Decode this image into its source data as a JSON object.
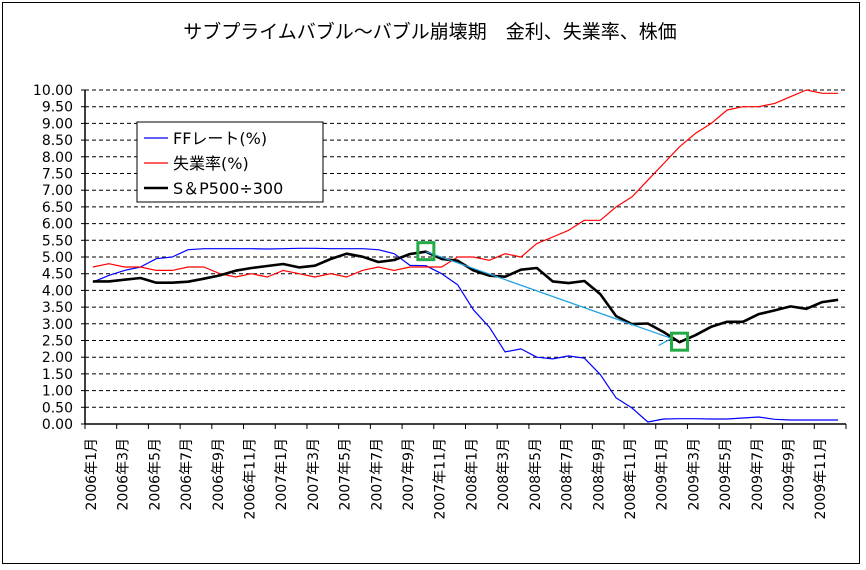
{
  "chart_data": {
    "type": "line",
    "title": "サブプライムバブル～バブル崩壊期　金利、失業率、株価",
    "xlabel": "",
    "ylabel": "",
    "ylim": [
      0,
      10
    ],
    "yticks": [
      "0.00",
      "0.50",
      "1.00",
      "1.50",
      "2.00",
      "2.50",
      "3.00",
      "3.50",
      "4.00",
      "4.50",
      "5.00",
      "5.50",
      "6.00",
      "6.50",
      "7.00",
      "7.50",
      "8.00",
      "8.50",
      "9.00",
      "9.50",
      "10.00"
    ],
    "grid": "horizontal dashed",
    "legend_position": "top-left",
    "categories": [
      "2006年1月",
      "2006年2月",
      "2006年3月",
      "2006年4月",
      "2006年5月",
      "2006年6月",
      "2006年7月",
      "2006年8月",
      "2006年9月",
      "2006年10月",
      "2006年11月",
      "2006年12月",
      "2007年1月",
      "2007年2月",
      "2007年3月",
      "2007年4月",
      "2007年5月",
      "2007年6月",
      "2007年7月",
      "2007年8月",
      "2007年9月",
      "2007年10月",
      "2007年11月",
      "2007年12月",
      "2008年1月",
      "2008年2月",
      "2008年3月",
      "2008年4月",
      "2008年5月",
      "2008年6月",
      "2008年7月",
      "2008年8月",
      "2008年9月",
      "2008年10月",
      "2008年11月",
      "2008年12月",
      "2009年1月",
      "2009年2月",
      "2009年3月",
      "2009年4月",
      "2009年5月",
      "2009年6月",
      "2009年7月",
      "2009年8月",
      "2009年9月",
      "2009年10月",
      "2009年11月",
      "2009年12月"
    ],
    "xtick_labels": [
      "2006年1月",
      "2006年3月",
      "2006年5月",
      "2006年7月",
      "2006年9月",
      "2006年11月",
      "2007年1月",
      "2007年3月",
      "2007年5月",
      "2007年7月",
      "2007年9月",
      "2007年11月",
      "2008年1月",
      "2008年3月",
      "2008年5月",
      "2008年7月",
      "2008年9月",
      "2008年11月",
      "2009年1月",
      "2009年3月",
      "2009年5月",
      "2009年7月",
      "2009年9月",
      "2009年11月"
    ],
    "series": [
      {
        "name": "FFレート(%)",
        "color": "#0000ff",
        "values": [
          4.25,
          4.45,
          4.6,
          4.7,
          4.95,
          5.0,
          5.22,
          5.25,
          5.25,
          5.25,
          5.25,
          5.24,
          5.25,
          5.26,
          5.26,
          5.25,
          5.25,
          5.25,
          5.22,
          5.1,
          4.75,
          4.74,
          4.5,
          4.17,
          3.42,
          2.9,
          2.16,
          2.25,
          2.0,
          1.95,
          2.04,
          1.97,
          1.48,
          0.78,
          0.48,
          0.06,
          0.15,
          0.16,
          0.16,
          0.15,
          0.15,
          0.18,
          0.21,
          0.14,
          0.12,
          0.12,
          0.12,
          0.12
        ]
      },
      {
        "name": "失業率(%)",
        "color": "#ff0000",
        "values": [
          4.7,
          4.8,
          4.7,
          4.7,
          4.6,
          4.6,
          4.7,
          4.7,
          4.5,
          4.4,
          4.5,
          4.4,
          4.6,
          4.5,
          4.4,
          4.5,
          4.4,
          4.6,
          4.7,
          4.6,
          4.7,
          4.7,
          4.7,
          5.0,
          5.0,
          4.9,
          5.1,
          5.0,
          5.4,
          5.6,
          5.8,
          6.1,
          6.1,
          6.5,
          6.8,
          7.3,
          7.8,
          8.3,
          8.7,
          9.0,
          9.4,
          9.5,
          9.5,
          9.6,
          9.8,
          10.0,
          9.9,
          9.9
        ]
      },
      {
        "name": "S＆P500÷300",
        "color": "#000000",
        "values": [
          4.27,
          4.27,
          4.32,
          4.37,
          4.23,
          4.23,
          4.26,
          4.35,
          4.45,
          4.59,
          4.67,
          4.73,
          4.79,
          4.69,
          4.74,
          4.94,
          5.1,
          5.01,
          4.85,
          4.91,
          5.09,
          5.16,
          4.94,
          4.89,
          4.6,
          4.44,
          4.41,
          4.62,
          4.67,
          4.27,
          4.22,
          4.28,
          3.89,
          3.23,
          2.99,
          3.01,
          2.75,
          2.45,
          2.66,
          2.91,
          3.06,
          3.06,
          3.29,
          3.4,
          3.52,
          3.45,
          3.65,
          3.72
        ]
      }
    ],
    "annotations": {
      "highlight_boxes": [
        "2007年10月",
        "2009年2月"
      ],
      "highlight_color": "#22aa44",
      "trend_line_color": "#1ea0e0",
      "trend_line": {
        "from": [
          "2007年10月",
          5.16
        ],
        "to": [
          "2009年2月",
          2.56
        ]
      }
    }
  }
}
